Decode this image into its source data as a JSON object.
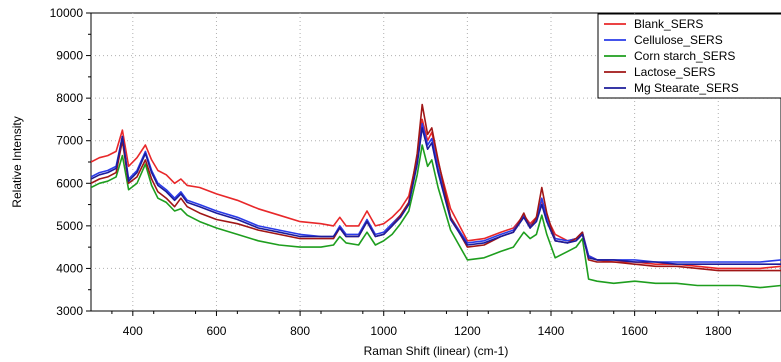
{
  "chart_data": {
    "type": "line",
    "xlabel": "Raman Shift (linear) (cm-1)",
    "ylabel": "Relative Intensity",
    "xlim": [
      300,
      1950
    ],
    "ylim": [
      3000,
      10000
    ],
    "x_ticks": [
      400,
      600,
      800,
      1000,
      1200,
      1400,
      1600,
      1800
    ],
    "x_tick_labels": [
      "400",
      "600",
      "800",
      "1000",
      "1200",
      "1400",
      "1600",
      "1800"
    ],
    "y_ticks": [
      3000,
      4000,
      5000,
      6000,
      7000,
      8000,
      9000,
      10000
    ],
    "y_tick_labels": [
      "3000",
      "4000",
      "5000",
      "6000",
      "7000",
      "8000",
      "9000",
      "10000"
    ],
    "grid": true,
    "legend_position": "top-right",
    "x": [
      300,
      320,
      340,
      360,
      375,
      390,
      410,
      430,
      445,
      460,
      480,
      500,
      515,
      530,
      560,
      600,
      650,
      700,
      750,
      800,
      850,
      880,
      895,
      910,
      940,
      960,
      980,
      1000,
      1020,
      1040,
      1060,
      1080,
      1092,
      1105,
      1115,
      1130,
      1160,
      1200,
      1240,
      1280,
      1310,
      1335,
      1350,
      1365,
      1378,
      1390,
      1410,
      1440,
      1460,
      1475,
      1490,
      1510,
      1550,
      1600,
      1650,
      1700,
      1750,
      1800,
      1850,
      1900,
      1950
    ],
    "series": [
      {
        "name": "Blank_SERS",
        "color": "#e8282a",
        "values": [
          6500,
          6600,
          6650,
          6750,
          7250,
          6400,
          6600,
          6900,
          6550,
          6300,
          6200,
          6000,
          6100,
          5950,
          5900,
          5750,
          5600,
          5400,
          5250,
          5100,
          5050,
          5000,
          5200,
          5000,
          5000,
          5350,
          5000,
          5050,
          5200,
          5400,
          5700,
          6600,
          7500,
          7000,
          7200,
          6500,
          5400,
          4650,
          4700,
          4850,
          4950,
          5250,
          5050,
          5200,
          5600,
          5200,
          4800,
          4650,
          4700,
          4800,
          4300,
          4200,
          4150,
          4150,
          4100,
          4100,
          4050,
          4000,
          4000,
          4000,
          4050
        ]
      },
      {
        "name": "Cellulose_SERS",
        "color": "#2a3be8",
        "values": [
          6150,
          6250,
          6300,
          6400,
          7100,
          6100,
          6300,
          6750,
          6300,
          6000,
          5850,
          5650,
          5800,
          5600,
          5500,
          5350,
          5200,
          5000,
          4900,
          4800,
          4750,
          4750,
          5000,
          4800,
          4800,
          5150,
          4800,
          4850,
          5050,
          5250,
          5550,
          6500,
          7400,
          6900,
          7050,
          6350,
          5200,
          4600,
          4650,
          4800,
          4900,
          5250,
          5000,
          5150,
          5650,
          5200,
          4700,
          4650,
          4700,
          4850,
          4300,
          4200,
          4200,
          4200,
          4150,
          4150,
          4150,
          4150,
          4150,
          4150,
          4200
        ]
      },
      {
        "name": "Corn starch_SERS",
        "color": "#1e9e1e",
        "values": [
          5900,
          6000,
          6050,
          6150,
          6650,
          5850,
          6000,
          6450,
          5950,
          5650,
          5550,
          5350,
          5400,
          5250,
          5100,
          4950,
          4800,
          4650,
          4550,
          4500,
          4500,
          4550,
          4750,
          4600,
          4550,
          4850,
          4550,
          4650,
          4800,
          5050,
          5350,
          6200,
          6900,
          6400,
          6550,
          5900,
          4900,
          4200,
          4250,
          4400,
          4500,
          4850,
          4700,
          4800,
          5250,
          4800,
          4250,
          4400,
          4500,
          4700,
          3750,
          3700,
          3650,
          3700,
          3650,
          3650,
          3600,
          3600,
          3600,
          3550,
          3600
        ]
      },
      {
        "name": "Lactose_SERS",
        "color": "#a01616",
        "values": [
          6000,
          6100,
          6150,
          6250,
          7000,
          6000,
          6150,
          6550,
          6100,
          5800,
          5650,
          5450,
          5650,
          5450,
          5300,
          5150,
          5050,
          4900,
          4800,
          4700,
          4700,
          4700,
          4950,
          4750,
          4750,
          5100,
          4750,
          4800,
          5000,
          5250,
          5550,
          6700,
          7850,
          7150,
          7300,
          6550,
          5200,
          4500,
          4550,
          4750,
          4850,
          5300,
          4950,
          5200,
          5900,
          5300,
          4650,
          4600,
          4700,
          4850,
          4200,
          4150,
          4150,
          4100,
          4050,
          4050,
          4000,
          3950,
          3950,
          3950,
          3950
        ]
      },
      {
        "name": "Mg Stearate_SERS",
        "color": "#1c1c9a",
        "values": [
          6100,
          6200,
          6250,
          6350,
          7100,
          6050,
          6250,
          6700,
          6250,
          5950,
          5800,
          5600,
          5750,
          5550,
          5450,
          5300,
          5150,
          4950,
          4850,
          4750,
          4750,
          4750,
          4950,
          4750,
          4750,
          5100,
          4750,
          4800,
          5000,
          5200,
          5500,
          6450,
          7300,
          6800,
          6950,
          6250,
          5150,
          4550,
          4600,
          4750,
          4850,
          5200,
          4950,
          5100,
          5500,
          5100,
          4650,
          4600,
          4650,
          4800,
          4250,
          4200,
          4200,
          4150,
          4150,
          4100,
          4100,
          4100,
          4100,
          4100,
          4100
        ]
      }
    ]
  }
}
